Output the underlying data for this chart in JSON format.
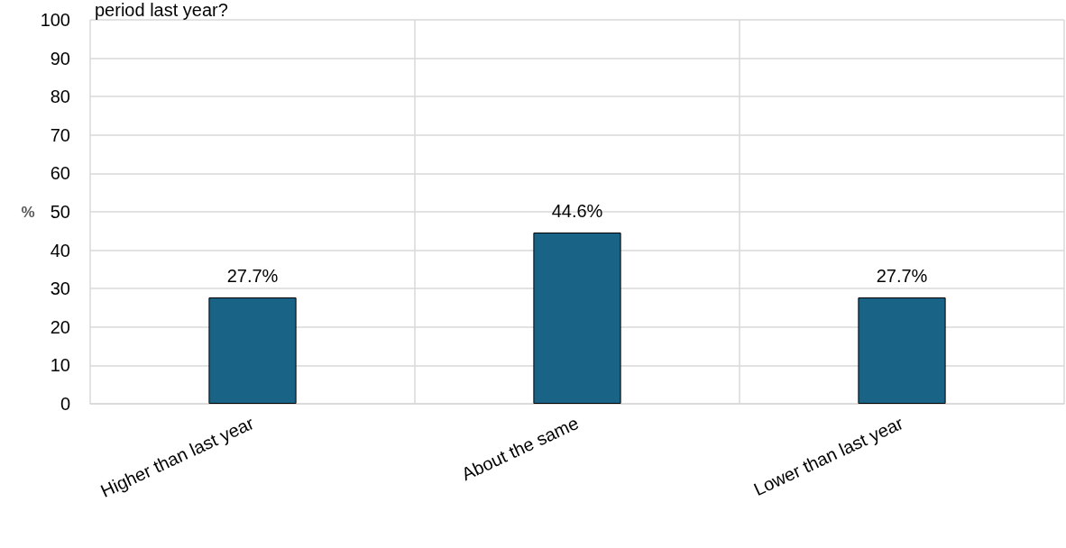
{
  "chart_data": {
    "type": "bar",
    "title": "period last year?",
    "ylabel": "%",
    "categories": [
      "Higher than last year",
      "About the same",
      "Lower than last year"
    ],
    "values": [
      27.7,
      44.6,
      27.7
    ],
    "color": "#186386",
    "value_labels": [
      "27.7%",
      "44.6%",
      "27.7%"
    ],
    "ylim": [
      0,
      100
    ],
    "yticks": [
      0,
      10,
      20,
      30,
      40,
      50,
      60,
      70,
      80,
      90,
      100
    ],
    "grid": true
  }
}
